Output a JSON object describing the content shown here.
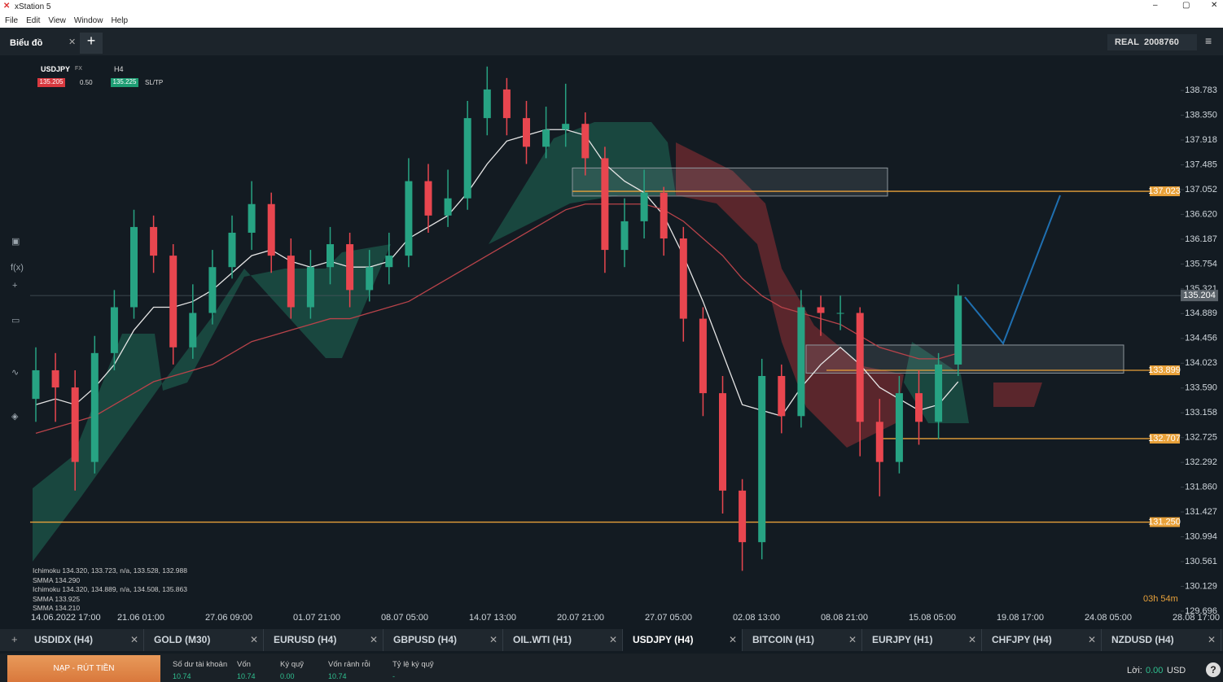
{
  "window": {
    "title": "xStation 5",
    "menu": [
      "File",
      "Edit",
      "View",
      "Window",
      "Help"
    ]
  },
  "toolbar": {
    "tab": "Biểu đồ",
    "account_type": "REAL",
    "account_id": "2008760"
  },
  "chart_panel": {
    "symbol": "USDJPY",
    "market": "FX",
    "timeframe": "H4",
    "sell": "135.205",
    "volume": "0.50",
    "buy": "135.225",
    "sltp": "SL/TP",
    "timer": "03h 54m",
    "indicators": [
      "Ichimoku 134.320, 133.723, n/a, 133.528, 132.988",
      "SMMA 134.290",
      "Ichimoku 134.320, 134.889, n/a, 134.508, 135.863",
      "SMMA 133.925",
      "SMMA 134.210"
    ]
  },
  "chart_data": {
    "type": "candlestick",
    "x_labels": [
      "14.06.2022 17:00",
      "21.06 01:00",
      "27.06 09:00",
      "01.07 21:00",
      "08.07 05:00",
      "14.07 13:00",
      "20.07 21:00",
      "27.07 05:00",
      "02.08 13:00",
      "08.08 21:00",
      "15.08 05:00",
      "19.08 17:00",
      "24.08 05:00",
      "28.08 17:00"
    ],
    "open": [
      133.4,
      133.9,
      133.6,
      132.3,
      134.2,
      135.0,
      136.4,
      135.9,
      134.3,
      134.9,
      135.7,
      136.3,
      136.8,
      135.9,
      135.0,
      135.7,
      136.1,
      135.3,
      135.7,
      135.9,
      137.2,
      136.6,
      136.9,
      138.3,
      138.8,
      138.3,
      137.8,
      138.1,
      138.2,
      137.6,
      136.0,
      136.5,
      137.0,
      136.2,
      134.8,
      133.5,
      131.8,
      130.9,
      133.8,
      133.1,
      135.0,
      134.9,
      134.9,
      133.0,
      132.3,
      133.5,
      133.0,
      134.0
    ],
    "high": [
      134.3,
      134.2,
      133.9,
      134.5,
      135.3,
      136.7,
      136.6,
      136.1,
      135.4,
      136.0,
      136.6,
      137.2,
      137.0,
      136.2,
      136.0,
      136.4,
      136.3,
      136.0,
      136.3,
      137.6,
      137.5,
      137.4,
      138.6,
      139.2,
      139.0,
      138.6,
      138.5,
      138.9,
      138.4,
      137.8,
      136.9,
      137.4,
      137.1,
      136.4,
      135.0,
      133.8,
      132.0,
      134.1,
      134.0,
      135.3,
      135.2,
      135.2,
      135.0,
      133.4,
      133.8,
      133.9,
      134.2,
      135.4
    ],
    "low": [
      133.0,
      133.0,
      131.8,
      132.1,
      133.9,
      134.8,
      135.6,
      134.0,
      134.1,
      134.7,
      135.5,
      136.0,
      135.6,
      134.8,
      134.8,
      135.4,
      135.0,
      135.1,
      135.4,
      135.7,
      136.3,
      136.4,
      136.7,
      138.0,
      138.0,
      137.5,
      137.6,
      137.8,
      137.3,
      135.6,
      135.7,
      136.2,
      135.9,
      134.4,
      133.1,
      131.4,
      130.4,
      130.6,
      132.8,
      132.9,
      134.5,
      134.6,
      132.4,
      131.7,
      132.1,
      132.6,
      132.7,
      133.8
    ],
    "close": [
      133.9,
      133.6,
      132.3,
      134.2,
      135.0,
      136.4,
      135.9,
      134.3,
      134.9,
      135.7,
      136.3,
      136.8,
      135.9,
      135.0,
      135.7,
      136.1,
      135.3,
      135.7,
      135.9,
      137.2,
      136.6,
      136.9,
      138.3,
      138.8,
      138.3,
      137.8,
      138.1,
      138.2,
      137.6,
      136.0,
      136.5,
      137.0,
      136.2,
      134.8,
      133.5,
      131.8,
      130.9,
      133.8,
      133.1,
      135.0,
      134.9,
      134.9,
      133.0,
      132.3,
      133.5,
      133.0,
      134.0,
      135.2
    ],
    "up_color": "#27a383",
    "down_color": "#e8464f",
    "overlays": [
      {
        "color": "#e6e6e6",
        "values": [
          133.3,
          133.4,
          133.3,
          133.6,
          134.0,
          134.6,
          135.0,
          135.0,
          135.1,
          135.3,
          135.6,
          135.9,
          136.0,
          135.8,
          135.7,
          135.8,
          135.7,
          135.7,
          135.8,
          136.2,
          136.4,
          136.6,
          137.0,
          137.5,
          137.9,
          138.0,
          138.1,
          138.1,
          138.0,
          137.5,
          137.2,
          137.0,
          136.6,
          135.9,
          135.1,
          134.2,
          133.3,
          133.2,
          133.1,
          133.6,
          134.0,
          134.3,
          134.0,
          133.6,
          133.4,
          133.2,
          133.3,
          133.7
        ]
      },
      {
        "color": "#b8434a",
        "values": [
          132.8,
          132.9,
          133.0,
          133.1,
          133.3,
          133.5,
          133.7,
          133.8,
          133.9,
          134.0,
          134.2,
          134.4,
          134.5,
          134.6,
          134.7,
          134.8,
          134.8,
          134.9,
          135.0,
          135.1,
          135.3,
          135.5,
          135.7,
          135.9,
          136.1,
          136.3,
          136.5,
          136.7,
          136.8,
          136.8,
          136.8,
          136.8,
          136.7,
          136.5,
          136.2,
          135.9,
          135.5,
          135.2,
          135.0,
          134.9,
          134.8,
          134.7,
          134.5,
          134.3,
          134.2,
          134.1,
          134.1,
          134.2
        ]
      }
    ],
    "zones": [
      {
        "low": 136.94,
        "high": 137.43
      },
      {
        "low": 133.85,
        "high": 134.34
      }
    ],
    "levels": [
      137.023,
      133.899,
      132.707,
      {
        "value": 131.25,
        "label": "131.250"
      }
    ],
    "level_color": "#e8a13a",
    "last_price": 135.204,
    "ylim": [
      129.454,
      139.367
    ],
    "yticks": [
      138.783,
      {
        "value": 138.35,
        "label": "138.350"
      },
      137.918,
      137.485,
      137.052,
      {
        "value": 136.62,
        "label": "136.620"
      },
      136.187,
      135.754,
      135.321,
      134.889,
      134.456,
      134.023,
      {
        "value": 133.59,
        "label": "133.590"
      },
      133.158,
      132.725,
      132.292,
      {
        "value": 131.86,
        "label": "131.860"
      },
      131.427,
      130.994,
      130.561,
      130.129,
      129.696
    ]
  },
  "tabs": [
    "USDIDX (H4)",
    "GOLD (M30)",
    "EURUSD (H4)",
    "GBPUSD (H4)",
    "OIL.WTI (H1)",
    "USDJPY (H4)",
    "BITCOIN (H1)",
    "EURJPY (H1)",
    "CHFJPY (H4)",
    "NZDUSD (H4)"
  ],
  "account": {
    "deposit_button": "NẠP - RÚT TIỀN",
    "fields": [
      {
        "label": "Số dư tài khoản",
        "value": "10.74"
      },
      {
        "label": "Vốn",
        "value": "10.74"
      },
      {
        "label": "Ký quỹ",
        "value": "0.00"
      },
      {
        "label": "Vốn rảnh rỗi",
        "value": "10.74"
      },
      {
        "label": "Tỷ lệ ký quỹ",
        "value": "-"
      }
    ],
    "profit_label": "Lời:",
    "profit": "0.00",
    "currency": "USD"
  }
}
